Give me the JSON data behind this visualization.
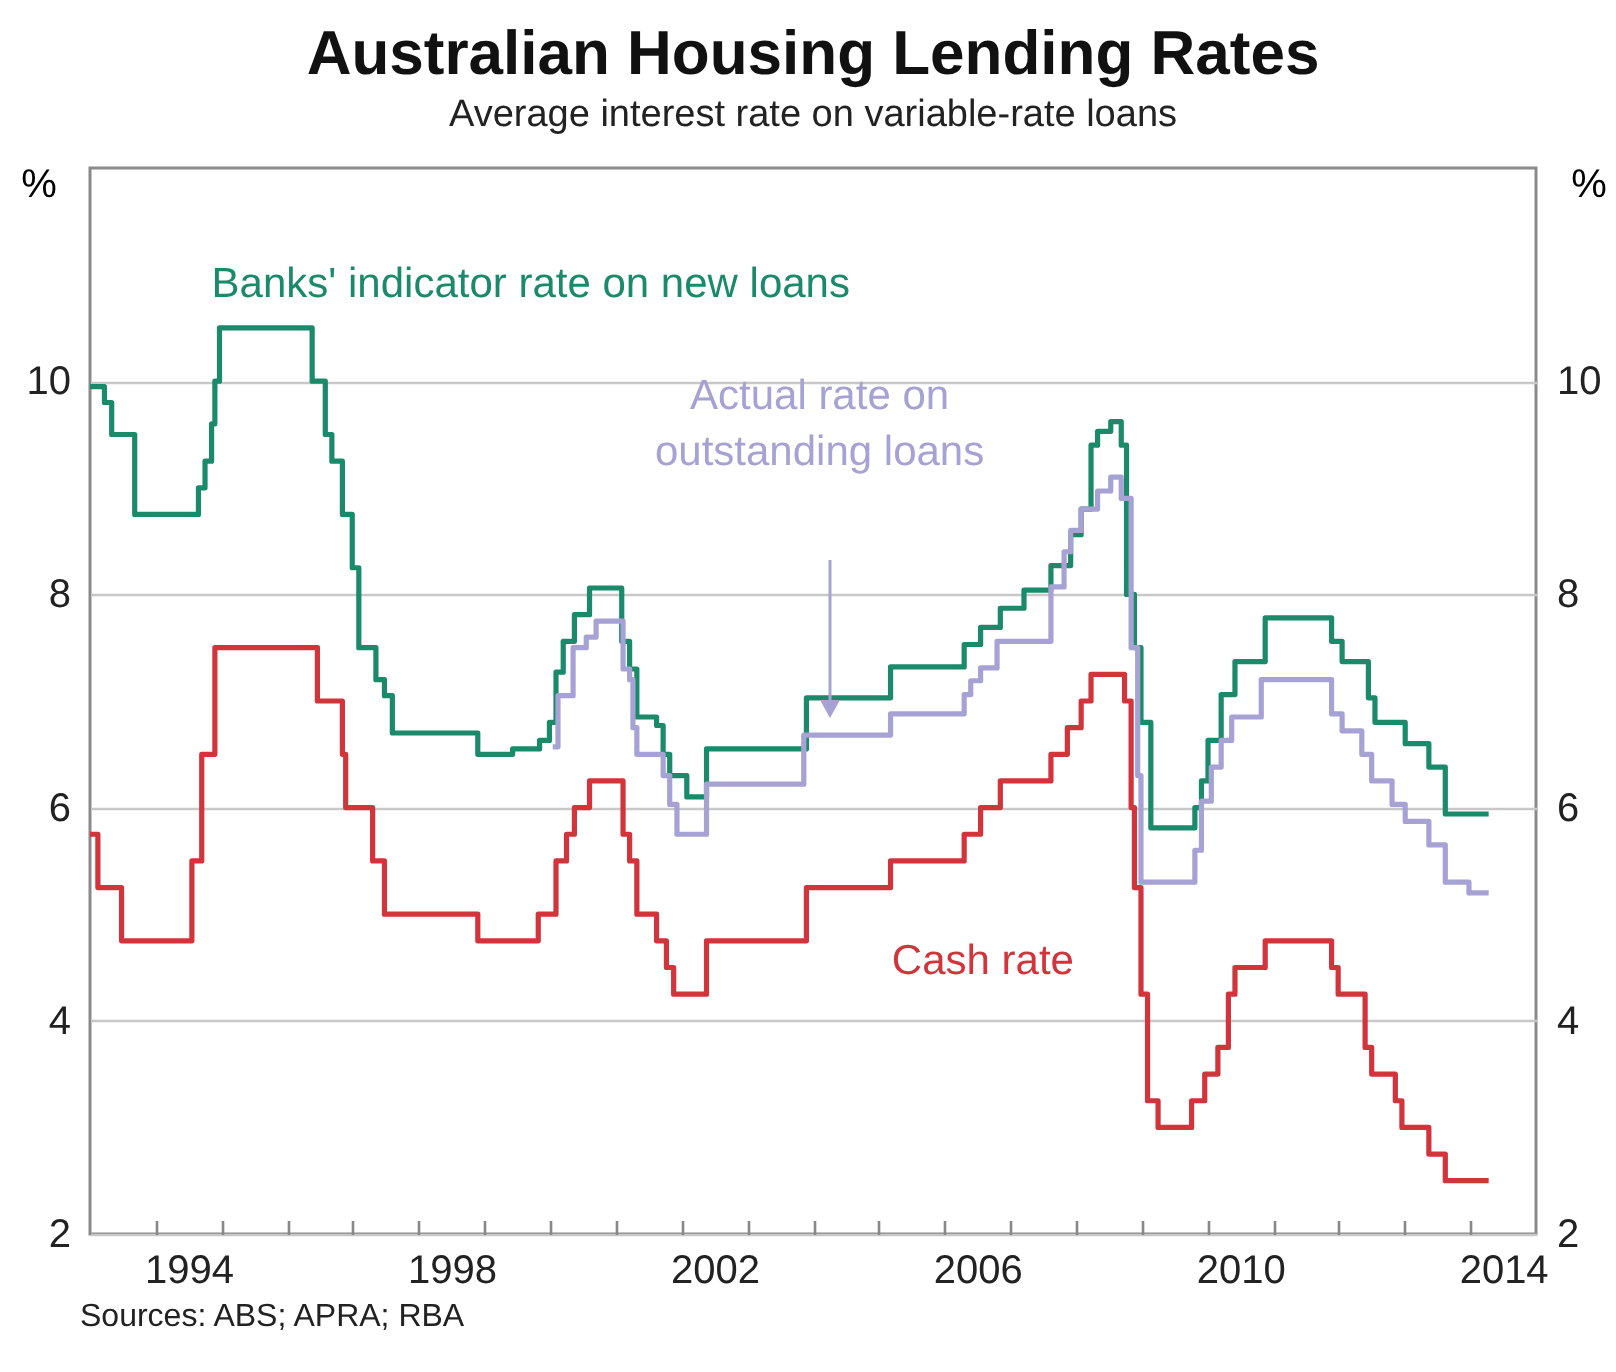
{
  "chart_data": {
    "type": "step",
    "title": "Australian Housing Lending Rates",
    "subtitle": "Average interest rate on variable-rate loans",
    "ylabel": "%",
    "y2label": "%",
    "annotations": [
      "Sources: ABS; APRA; RBA"
    ],
    "xlim": [
      1993,
      2015
    ],
    "xticks": [
      {
        "value": 1994,
        "label": null
      },
      {
        "value": 1994.5,
        "label": "1994"
      },
      {
        "value": 1995,
        "label": null
      },
      {
        "value": 1996,
        "label": null
      },
      {
        "value": 1997,
        "label": null
      },
      {
        "value": 1998,
        "label": null
      },
      {
        "value": 1998.5,
        "label": "1998"
      },
      {
        "value": 1999,
        "label": null
      },
      {
        "value": 2000,
        "label": null
      },
      {
        "value": 2001,
        "label": null
      },
      {
        "value": 2002,
        "label": null
      },
      {
        "value": 2002.5,
        "label": "2002"
      },
      {
        "value": 2003,
        "label": null
      },
      {
        "value": 2004,
        "label": null
      },
      {
        "value": 2005,
        "label": null
      },
      {
        "value": 2006,
        "label": null
      },
      {
        "value": 2006.5,
        "label": "2006"
      },
      {
        "value": 2007,
        "label": null
      },
      {
        "value": 2008,
        "label": null
      },
      {
        "value": 2009,
        "label": null
      },
      {
        "value": 2010,
        "label": null
      },
      {
        "value": 2010.5,
        "label": "2010"
      },
      {
        "value": 2011,
        "label": null
      },
      {
        "value": 2012,
        "label": null
      },
      {
        "value": 2013,
        "label": null
      },
      {
        "value": 2014,
        "label": null
      },
      {
        "value": 2014.5,
        "label": "2014"
      }
    ],
    "ylim": [
      2,
      12
    ],
    "yticks": [
      2,
      4,
      6,
      8,
      10
    ],
    "y2lim": [
      2,
      12
    ],
    "y2ticks": [
      2,
      4,
      6,
      8,
      10
    ],
    "grid": "y",
    "series": [
      {
        "name": "Banks' indicator rate on new loans",
        "color": "#1b8a6b",
        "x": [
          1993.0,
          1993.22,
          1993.33,
          1993.68,
          1994.65,
          1994.75,
          1994.85,
          1994.9,
          1994.97,
          1996.38,
          1996.58,
          1996.68,
          1996.84,
          1996.99,
          1997.09,
          1997.35,
          1997.48,
          1997.6,
          1998.9,
          1999.43,
          1999.84,
          1999.99,
          2000.09,
          2000.2,
          2000.37,
          2000.6,
          2001.09,
          2001.21,
          2001.32,
          2001.62,
          2001.72,
          2001.82,
          2002.08,
          2002.38,
          2003.9,
          2005.18,
          2006.3,
          2006.55,
          2006.85,
          2007.21,
          2007.62,
          2007.92,
          2008.08,
          2008.23,
          2008.33,
          2008.53,
          2008.69,
          2008.77,
          2008.89,
          2008.99,
          2009.14,
          2009.81,
          2009.91,
          2010.01,
          2010.21,
          2010.42,
          2010.88,
          2011.89,
          2012.05,
          2012.45,
          2012.55,
          2013.01,
          2013.37,
          2013.62,
          2014.28
        ],
        "values": [
          9.95,
          9.8,
          9.5,
          8.75,
          9.0,
          9.25,
          9.6,
          10.0,
          10.5,
          10.0,
          9.5,
          9.25,
          8.75,
          8.25,
          7.5,
          7.2,
          7.05,
          6.7,
          6.5,
          6.55,
          6.63,
          6.8,
          7.27,
          7.56,
          7.81,
          8.06,
          7.56,
          7.3,
          6.85,
          6.77,
          6.5,
          6.3,
          6.1,
          6.55,
          7.03,
          7.32,
          7.53,
          7.69,
          7.87,
          8.04,
          8.27,
          8.56,
          8.8,
          9.4,
          9.53,
          9.62,
          9.4,
          8.0,
          7.5,
          6.8,
          5.81,
          6.0,
          6.25,
          6.63,
          7.06,
          7.37,
          7.78,
          7.56,
          7.37,
          7.03,
          6.8,
          6.6,
          6.38,
          5.94,
          5.94
        ]
      },
      {
        "name": "Actual rate on outstanding loans",
        "color": "#a7a2d4",
        "x": [
          2000.04,
          2000.12,
          2000.35,
          2000.55,
          2000.7,
          2001.11,
          2001.21,
          2001.26,
          2001.32,
          2001.72,
          2001.82,
          2001.93,
          2002.38,
          2003.86,
          2005.18,
          2006.3,
          2006.4,
          2006.55,
          2006.8,
          2007.62,
          2007.82,
          2007.92,
          2008.08,
          2008.33,
          2008.53,
          2008.69,
          2008.84,
          2008.94,
          2008.99,
          2009.81,
          2009.91,
          2010.06,
          2010.21,
          2010.37,
          2010.82,
          2011.89,
          2012.05,
          2012.35,
          2012.5,
          2012.81,
          2013.01,
          2013.37,
          2013.62,
          2013.98,
          2014.28
        ],
        "values": [
          6.57,
          7.05,
          7.5,
          7.6,
          7.75,
          7.3,
          7.2,
          6.75,
          6.5,
          6.3,
          6.03,
          5.75,
          6.22,
          6.68,
          6.88,
          7.06,
          7.19,
          7.31,
          7.56,
          8.07,
          8.4,
          8.6,
          8.8,
          8.97,
          9.1,
          8.9,
          7.5,
          6.3,
          5.3,
          5.6,
          6.06,
          6.38,
          6.63,
          6.85,
          7.2,
          6.88,
          6.72,
          6.5,
          6.25,
          6.03,
          5.87,
          5.65,
          5.3,
          5.2,
          5.2
        ]
      },
      {
        "name": "Cash rate",
        "color": "#d2343c",
        "x": [
          1993.0,
          1993.12,
          1993.48,
          1994.55,
          1994.7,
          1994.9,
          1996.46,
          1996.84,
          1996.89,
          1997.3,
          1997.48,
          1998.9,
          1999.82,
          2000.09,
          2000.25,
          2000.37,
          2000.6,
          2001.11,
          2001.21,
          2001.32,
          2001.62,
          2001.77,
          2001.88,
          2002.38,
          2003.9,
          2005.18,
          2006.3,
          2006.55,
          2006.85,
          2007.62,
          2007.87,
          2008.08,
          2008.23,
          2008.74,
          2008.84,
          2008.89,
          2008.99,
          2009.09,
          2009.25,
          2009.76,
          2009.96,
          2010.16,
          2010.32,
          2010.42,
          2010.88,
          2011.89,
          2011.99,
          2012.4,
          2012.5,
          2012.86,
          2012.96,
          2013.37,
          2013.62,
          2014.28
        ],
        "values": [
          5.75,
          5.25,
          4.75,
          5.5,
          6.5,
          7.5,
          7.0,
          6.5,
          6.0,
          5.5,
          5.0,
          4.75,
          5.0,
          5.5,
          5.75,
          6.0,
          6.25,
          5.75,
          5.5,
          5.0,
          4.75,
          4.5,
          4.25,
          4.75,
          5.25,
          5.5,
          5.75,
          6.0,
          6.25,
          6.5,
          6.75,
          7.0,
          7.25,
          7.0,
          6.0,
          5.25,
          4.25,
          3.25,
          3.0,
          3.25,
          3.5,
          3.75,
          4.25,
          4.5,
          4.75,
          4.5,
          4.25,
          3.75,
          3.5,
          3.25,
          3.0,
          2.75,
          2.5,
          2.5
        ]
      }
    ]
  }
}
